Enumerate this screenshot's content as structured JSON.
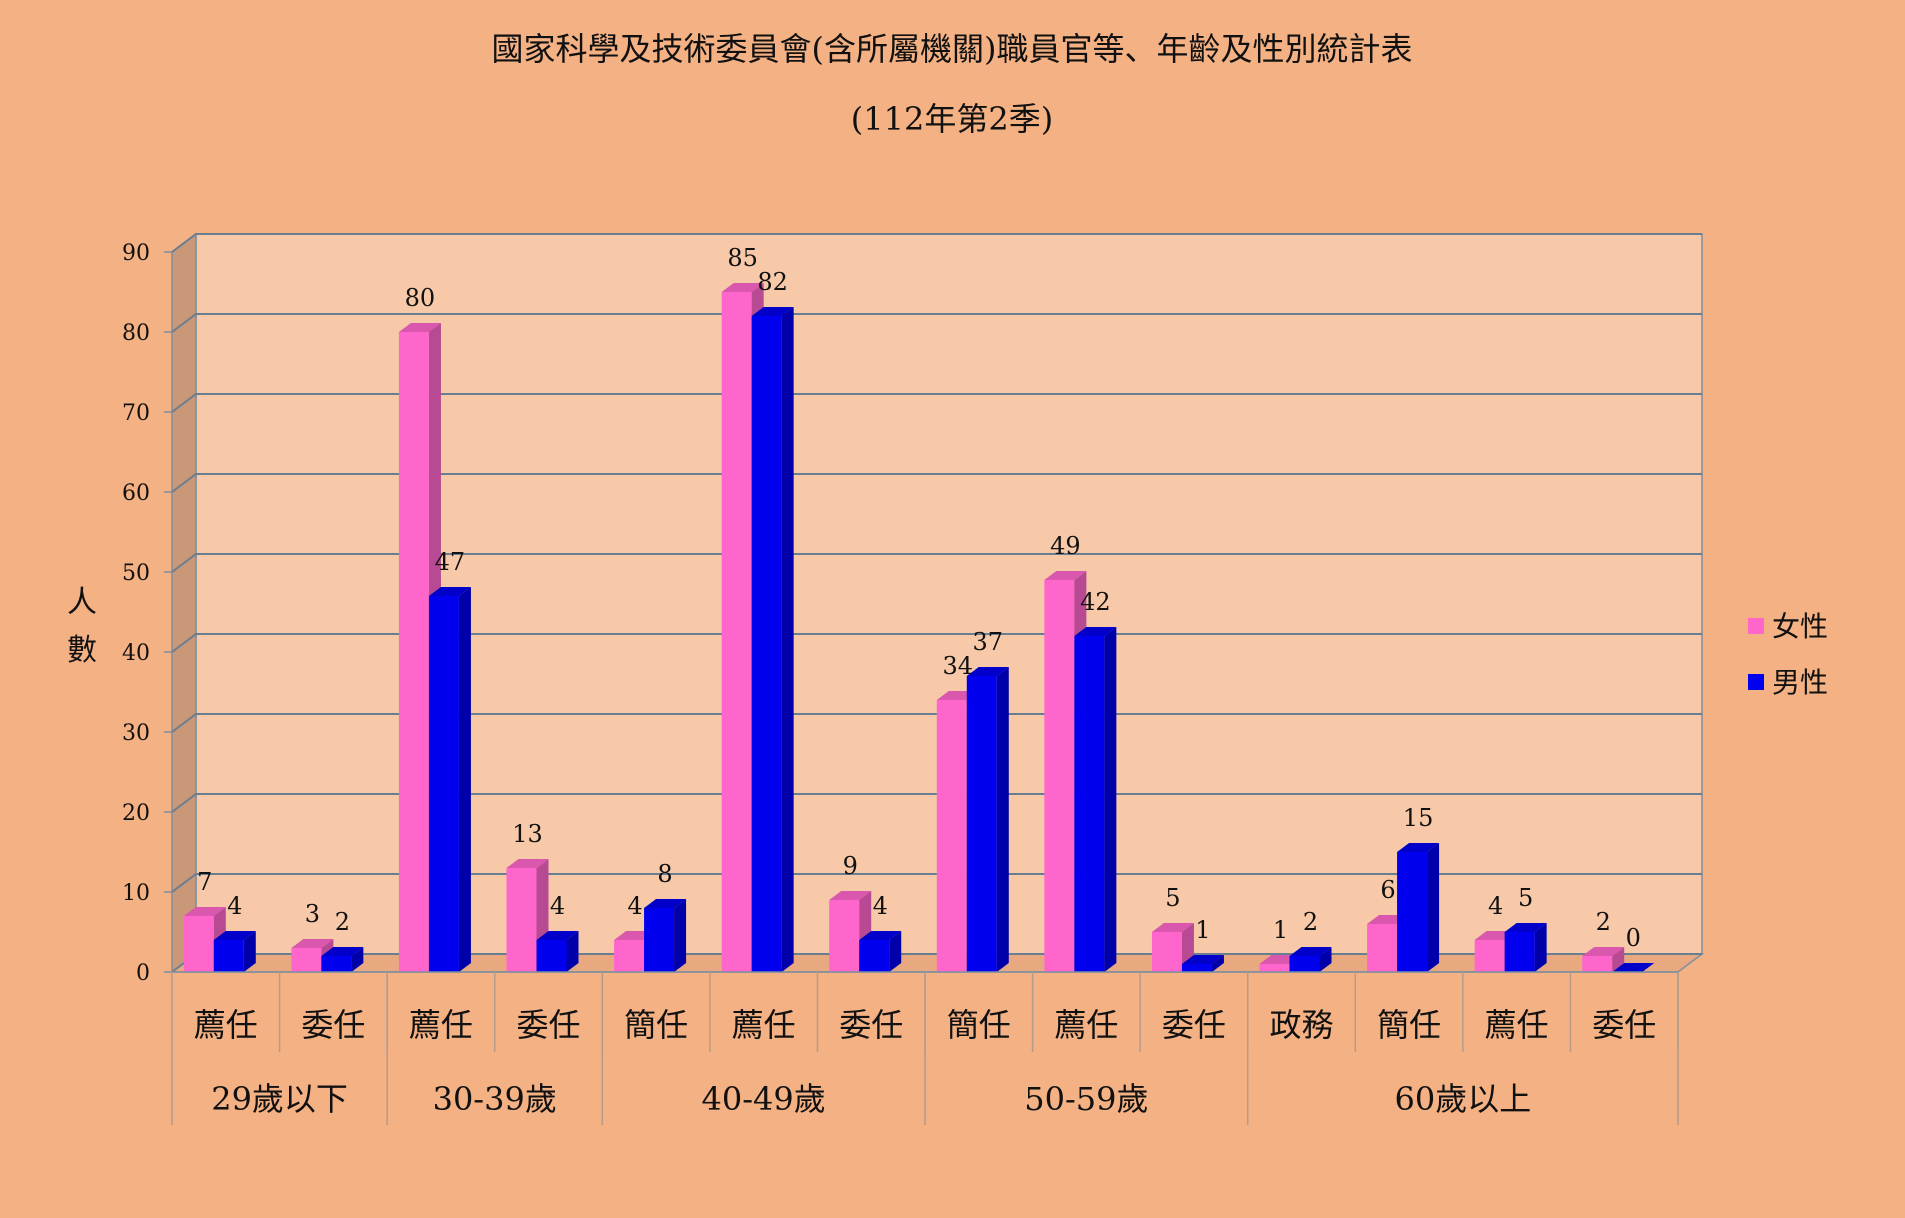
{
  "chart_data": {
    "type": "bar",
    "title": "國家科學及技術委員會(含所屬機關)職員官等、年齡及性別統計表",
    "subtitle": "(112年第2季)",
    "ylabel": "人數",
    "ylim": [
      0,
      90
    ],
    "yticks": [
      0,
      10,
      20,
      30,
      40,
      50,
      60,
      70,
      80,
      90
    ],
    "grid": true,
    "legend_position": "right",
    "groups": [
      {
        "label": "29歲以下",
        "categories": [
          "薦任",
          "委任"
        ]
      },
      {
        "label": "30-39歲",
        "categories": [
          "薦任",
          "委任"
        ]
      },
      {
        "label": "40-49歲",
        "categories": [
          "簡任",
          "薦任",
          "委任"
        ]
      },
      {
        "label": "50-59歲",
        "categories": [
          "簡任",
          "薦任",
          "委任"
        ]
      },
      {
        "label": "60歲以上",
        "categories": [
          "政務",
          "簡任",
          "薦任",
          "委任"
        ]
      }
    ],
    "series": [
      {
        "name": "女性",
        "color": "#ff66cc",
        "values": [
          7,
          3,
          80,
          13,
          4,
          85,
          9,
          34,
          49,
          5,
          1,
          6,
          4,
          2
        ]
      },
      {
        "name": "男性",
        "color": "#0000ee",
        "values": [
          4,
          2,
          47,
          4,
          8,
          82,
          4,
          37,
          42,
          1,
          2,
          15,
          5,
          0
        ]
      }
    ]
  }
}
